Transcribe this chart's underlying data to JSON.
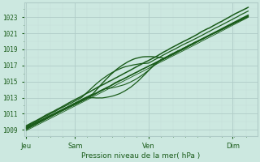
{
  "bg_color": "#cce8e0",
  "line_color": "#1a5c1a",
  "grid_color_major": "#b0ccc8",
  "grid_color_minor": "#c4dcd8",
  "xlabel": "Pression niveau de la mer( hPa )",
  "xtick_labels": [
    "Jeu",
    "Sam",
    "Ven",
    "Dim"
  ],
  "xtick_positions": [
    0.0,
    0.22,
    0.55,
    0.93
  ],
  "yticks": [
    1009,
    1011,
    1013,
    1015,
    1017,
    1019,
    1021,
    1023
  ],
  "ylim": [
    1008.2,
    1024.8
  ],
  "xlim": [
    -0.01,
    1.04
  ]
}
